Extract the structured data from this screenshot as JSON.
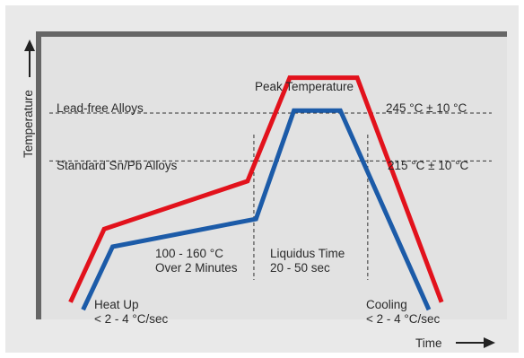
{
  "colors": {
    "outer_background": "#e9e9e9",
    "plot_background": "#e2e2e2",
    "plot_border": "#666666",
    "lead_free_curve": "#e2121c",
    "standard_curve": "#1c5ba8",
    "guide_lines": "#333333",
    "axis_arrows": "#222222"
  },
  "chart_data": {
    "type": "line",
    "xlabel": "Time",
    "ylabel": "Temperature",
    "axes_numeric": false,
    "grid": false,
    "legend": "none",
    "series": [
      {
        "color_key": "lead_free_curve",
        "points": [
          [
            0.05,
            0.04
          ],
          [
            0.13,
            0.33
          ],
          [
            0.47,
            0.52
          ],
          [
            0.57,
            0.93
          ],
          [
            0.73,
            0.93
          ],
          [
            0.93,
            0.04
          ]
        ]
      },
      {
        "color_key": "standard_curve",
        "points": [
          [
            0.08,
            0.01
          ],
          [
            0.15,
            0.26
          ],
          [
            0.49,
            0.37
          ],
          [
            0.58,
            0.8
          ],
          [
            0.69,
            0.8
          ],
          [
            0.9,
            0.01
          ]
        ]
      }
    ],
    "reference_lines": [
      {
        "level": 0.79,
        "left_label": "Lead-free Alloys",
        "right_label": "245 °C ± 10 °C"
      },
      {
        "level": 0.6,
        "left_label": "Standard Sn/Pb Alloys",
        "right_label": "215 °C ± 10 °C"
      }
    ],
    "phase_dividers": [
      0.485,
      0.755
    ],
    "annotations": {
      "peak": "Peak Temperature",
      "preheat": [
        "100 - 160 °C",
        "Over 2 Minutes"
      ],
      "liquidus": [
        "Liquidus Time",
        "20 - 50 sec"
      ],
      "heat_up": [
        "Heat Up",
        "< 2 - 4 °C/sec"
      ],
      "cooling": [
        "Cooling",
        "< 2 - 4 °C/sec"
      ]
    }
  }
}
